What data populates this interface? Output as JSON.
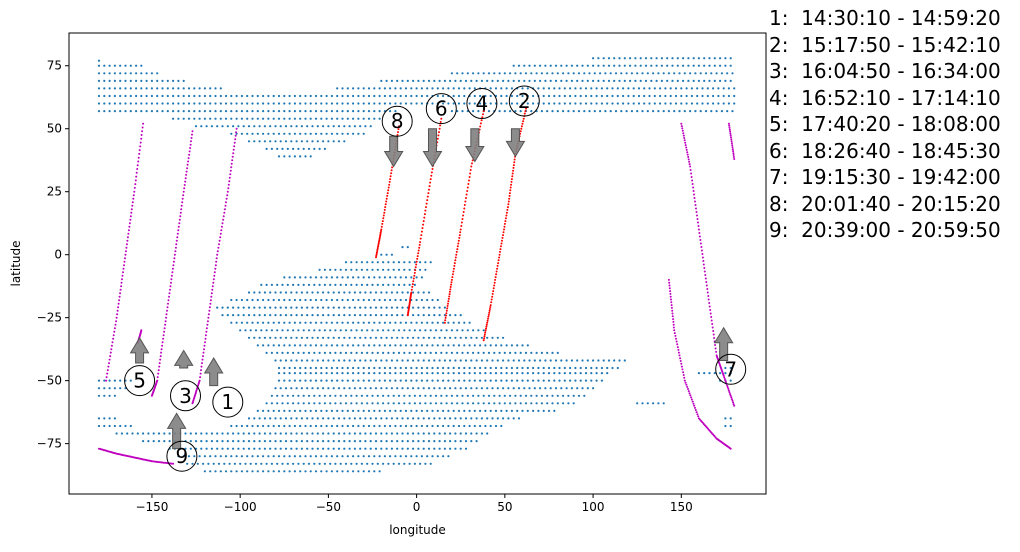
{
  "chart_data": {
    "type": "scatter",
    "title": "",
    "xlabel": "longitude",
    "ylabel": "latitude",
    "xlim": [
      -197,
      198
    ],
    "ylim": [
      -95,
      88
    ],
    "xticks": [
      -150,
      -100,
      -50,
      0,
      50,
      100,
      150
    ],
    "yticks": [
      -75,
      -50,
      -25,
      0,
      25,
      50,
      75
    ],
    "grid": false,
    "colors": {
      "land_points": "#1f77b4",
      "track_ascending": "#bf00bf",
      "track_descending": "#ff0000",
      "arrow": "#7f7f7f"
    },
    "legend_placement": "right of plot",
    "legend": [
      "1:  14:30:10 - 14:59:20",
      "2:  15:17:50 - 15:42:10",
      "3:  16:04:50 - 16:34:00",
      "4:  16:52:10 - 17:14:10",
      "5:  17:40:20 - 18:08:00",
      "6:  18:26:40 - 18:45:30",
      "7:  19:15:30 - 19:42:00",
      "8:  20:01:40 - 20:15:20",
      "9:  20:39:00 - 20:59:50"
    ],
    "land_rows": [
      {
        "lat": 77,
        "ranges": [
          [
            -180,
            -178
          ]
        ]
      },
      {
        "lat": 78,
        "ranges": [
          [
            100,
            180
          ]
        ]
      },
      {
        "lat": 75,
        "ranges": [
          [
            -180,
            -155
          ],
          [
            55,
            180
          ]
        ]
      },
      {
        "lat": 72,
        "ranges": [
          [
            -180,
            -145
          ],
          [
            20,
            180
          ]
        ]
      },
      {
        "lat": 69,
        "ranges": [
          [
            -180,
            -130
          ],
          [
            -20,
            180
          ]
        ]
      },
      {
        "lat": 66,
        "ranges": [
          [
            -180,
            -110
          ],
          [
            -45,
            180
          ]
        ]
      },
      {
        "lat": 63,
        "ranges": [
          [
            -180,
            180
          ]
        ]
      },
      {
        "lat": 60,
        "ranges": [
          [
            -180,
            180
          ]
        ]
      },
      {
        "lat": 57,
        "ranges": [
          [
            -180,
            -12
          ],
          [
            20,
            180
          ]
        ]
      },
      {
        "lat": 54,
        "ranges": [
          [
            -138,
            -20
          ]
        ]
      },
      {
        "lat": 51,
        "ranges": [
          [
            -125,
            -25
          ]
        ]
      },
      {
        "lat": 48,
        "ranges": [
          [
            -105,
            -30
          ]
        ]
      },
      {
        "lat": 45,
        "ranges": [
          [
            -95,
            -40
          ]
        ]
      },
      {
        "lat": 42,
        "ranges": [
          [
            -85,
            -50
          ]
        ]
      },
      {
        "lat": 39,
        "ranges": [
          [
            -78,
            -60
          ]
        ]
      },
      {
        "lat": 3,
        "ranges": [
          [
            -8,
            -3
          ]
        ]
      },
      {
        "lat": 0,
        "ranges": [
          [
            -20,
            -12
          ]
        ]
      },
      {
        "lat": -3,
        "ranges": [
          [
            -40,
            10
          ]
        ]
      },
      {
        "lat": -6,
        "ranges": [
          [
            -55,
            5
          ]
        ]
      },
      {
        "lat": -9,
        "ranges": [
          [
            -75,
            5
          ]
        ]
      },
      {
        "lat": -12,
        "ranges": [
          [
            -88,
            0
          ]
        ]
      },
      {
        "lat": -15,
        "ranges": [
          [
            -95,
            8
          ]
        ]
      },
      {
        "lat": -18,
        "ranges": [
          [
            -105,
            12
          ]
        ]
      },
      {
        "lat": -21,
        "ranges": [
          [
            -113,
            18
          ]
        ]
      },
      {
        "lat": -24,
        "ranges": [
          [
            -110,
            25
          ]
        ]
      },
      {
        "lat": -27,
        "ranges": [
          [
            -105,
            32
          ]
        ]
      },
      {
        "lat": -30,
        "ranges": [
          [
            -100,
            40
          ]
        ]
      },
      {
        "lat": -33,
        "ranges": [
          [
            -95,
            50
          ]
        ]
      },
      {
        "lat": -36,
        "ranges": [
          [
            -90,
            65
          ]
        ]
      },
      {
        "lat": -39,
        "ranges": [
          [
            -85,
            80
          ]
        ]
      },
      {
        "lat": -42,
        "ranges": [
          [
            -80,
            120
          ]
        ]
      },
      {
        "lat": -45,
        "ranges": [
          [
            -78,
            115
          ],
          [
            175,
            180
          ]
        ]
      },
      {
        "lat": -47,
        "ranges": [
          [
            -78,
            110
          ],
          [
            160,
            180
          ]
        ]
      },
      {
        "lat": -50,
        "ranges": [
          [
            -180,
            -160
          ],
          [
            -78,
            105
          ],
          [
            172,
            180
          ]
        ]
      },
      {
        "lat": -53,
        "ranges": [
          [
            -180,
            -165
          ],
          [
            -80,
            100
          ]
        ]
      },
      {
        "lat": -56,
        "ranges": [
          [
            -180,
            -170
          ],
          [
            -82,
            95
          ]
        ]
      },
      {
        "lat": -59,
        "ranges": [
          [
            -85,
            90
          ],
          [
            125,
            140
          ]
        ]
      },
      {
        "lat": -62,
        "ranges": [
          [
            -90,
            80
          ]
        ]
      },
      {
        "lat": -65,
        "ranges": [
          [
            -180,
            -170
          ],
          [
            -95,
            60
          ],
          [
            175,
            180
          ]
        ]
      },
      {
        "lat": -68,
        "ranges": [
          [
            -180,
            -160
          ],
          [
            -105,
            50
          ],
          [
            175,
            180
          ]
        ]
      },
      {
        "lat": -71,
        "ranges": [
          [
            -170,
            40
          ]
        ]
      },
      {
        "lat": -74,
        "ranges": [
          [
            -155,
            35
          ]
        ]
      },
      {
        "lat": -77,
        "ranges": [
          [
            -140,
            30
          ]
        ]
      },
      {
        "lat": -80,
        "ranges": [
          [
            -135,
            20
          ]
        ]
      },
      {
        "lat": -83,
        "ranges": [
          [
            -130,
            10
          ]
        ]
      },
      {
        "lat": -86,
        "ranges": [
          [
            -120,
            -20
          ]
        ]
      }
    ],
    "tracks": [
      {
        "id": "1",
        "color": "track_ascending",
        "points": [
          [
            -102,
            50
          ],
          [
            -107,
            25
          ],
          [
            -113,
            0
          ],
          [
            -118,
            -25
          ],
          [
            -123,
            -50
          ],
          [
            -127,
            -59
          ]
        ],
        "label_at": [
          -107,
          -58.5
        ],
        "arrow": {
          "x": -115,
          "from": -52,
          "to": -41,
          "dir": "up"
        }
      },
      {
        "id": "2",
        "color": "track_descending",
        "points": [
          [
            62,
            58
          ],
          [
            56,
            40
          ],
          [
            52,
            20
          ],
          [
            47,
            0
          ],
          [
            42,
            -20
          ],
          [
            38,
            -34
          ]
        ],
        "label_at": [
          61,
          61
        ],
        "arrow": {
          "x": 56,
          "from": 50,
          "to": 39,
          "dir": "down"
        }
      },
      {
        "id": "3",
        "color": "track_ascending",
        "points": [
          [
            -127,
            49
          ],
          [
            -132,
            25
          ],
          [
            -137,
            0
          ],
          [
            -142,
            -25
          ],
          [
            -147,
            -50
          ],
          [
            -150,
            -56
          ]
        ],
        "label_at": [
          -131,
          -56
        ],
        "arrow": {
          "x": -132,
          "from": -45,
          "to": -38,
          "dir": "up"
        }
      },
      {
        "id": "4",
        "color": "track_descending",
        "points": [
          [
            38,
            57
          ],
          [
            31,
            35
          ],
          [
            25,
            10
          ],
          [
            20,
            -10
          ],
          [
            16,
            -27
          ]
        ],
        "label_at": [
          37,
          60
        ],
        "arrow": {
          "x": 33,
          "from": 50,
          "to": 37,
          "dir": "down"
        }
      },
      {
        "id": "5",
        "color": "track_ascending",
        "points": [
          [
            -155,
            52
          ],
          [
            -160,
            25
          ],
          [
            -165,
            0
          ],
          [
            -170,
            -25
          ],
          [
            -176,
            -50
          ]
        ],
        "label_at": [
          -157,
          -50
        ],
        "arrow": {
          "x": -157,
          "from": -43,
          "to": -33,
          "dir": "up"
        }
      },
      {
        "id": "6",
        "color": "track_descending",
        "points": [
          [
            14,
            54
          ],
          [
            8,
            30
          ],
          [
            2,
            5
          ],
          [
            -3,
            -15
          ],
          [
            -5,
            -24
          ]
        ],
        "label_at": [
          14,
          58
        ],
        "arrow": {
          "x": 9,
          "from": 50,
          "to": 35,
          "dir": "down"
        }
      },
      {
        "id": "7",
        "color": "track_ascending",
        "points": [
          [
            150,
            52
          ],
          [
            155,
            35
          ],
          [
            160,
            10
          ],
          [
            165,
            -15
          ],
          [
            170,
            -40
          ],
          [
            174,
            -48
          ],
          [
            180,
            -60
          ]
        ],
        "label_at": [
          178,
          -45.5
        ],
        "arrow": {
          "x": 174,
          "from": -42,
          "to": -29,
          "dir": "up"
        }
      },
      {
        "id": "7b",
        "color": "track_ascending",
        "points": [
          [
            143,
            -10
          ],
          [
            146,
            -30
          ],
          [
            152,
            -50
          ],
          [
            160,
            -65
          ],
          [
            170,
            -73
          ],
          [
            178,
            -77
          ]
        ],
        "label_at": null,
        "arrow": null
      },
      {
        "id": "7c",
        "color": "track_ascending",
        "points": [
          [
            177,
            52
          ],
          [
            180,
            38
          ]
        ],
        "label_at": null,
        "arrow": null
      },
      {
        "id": "8",
        "color": "track_descending",
        "points": [
          [
            -10,
            51
          ],
          [
            -15,
            30
          ],
          [
            -20,
            10
          ],
          [
            -23,
            -1
          ]
        ],
        "label_at": [
          -11,
          53
        ],
        "arrow": {
          "x": -13,
          "from": 47,
          "to": 35,
          "dir": "down"
        }
      },
      {
        "id": "9",
        "color": "track_ascending",
        "points": [
          [
            -180,
            -77
          ],
          [
            -170,
            -79
          ],
          [
            -160,
            -80.5
          ],
          [
            -150,
            -82
          ],
          [
            -138,
            -83
          ]
        ],
        "label_at": [
          -133,
          -80
        ],
        "arrow": {
          "x": -136,
          "from": -77,
          "to": -63,
          "dir": "up"
        }
      },
      {
        "id": "9b",
        "color": "track_ascending",
        "points": [
          [
            -158,
            -35
          ],
          [
            -156,
            -30
          ]
        ],
        "label_at": null,
        "arrow": null
      }
    ]
  }
}
